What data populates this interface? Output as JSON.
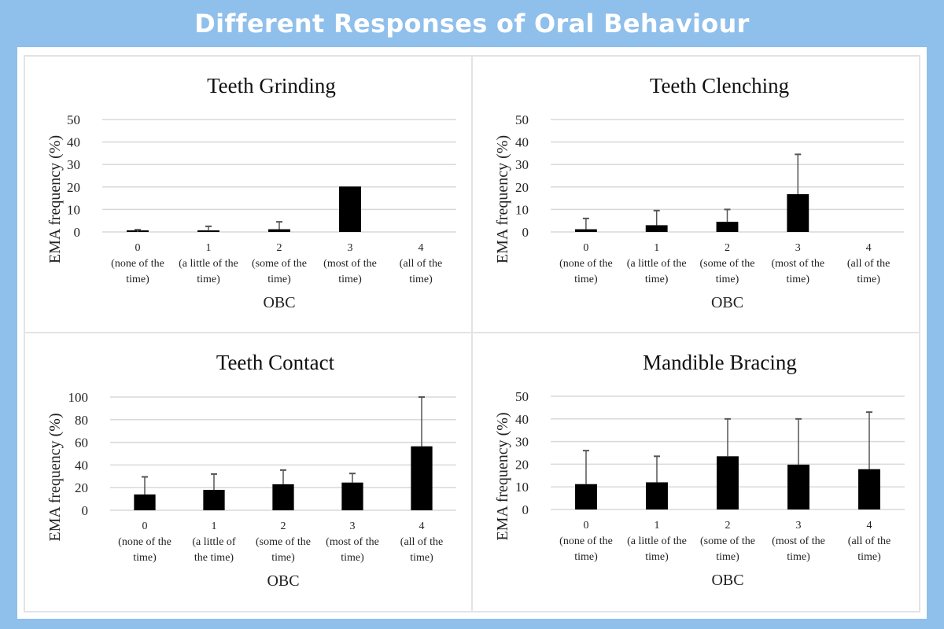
{
  "header": {
    "title": "Different Responses of Oral Behaviour"
  },
  "colors": {
    "background": "#8fbfeb",
    "bar": "#000000",
    "error_bar": "#555555",
    "grid": "#d9d9d9"
  },
  "chart_data": [
    {
      "type": "bar",
      "title": "Teeth Grinding",
      "xlabel": "OBC",
      "ylabel": "EMA frequency (%)",
      "ylim": [
        0,
        50
      ],
      "yticks": [
        "0",
        "10",
        "20",
        "30",
        "40",
        "50"
      ],
      "yticks_values": [
        0,
        10,
        20,
        30,
        40,
        50
      ],
      "grid": true,
      "categories": [
        [
          "0",
          "(none of the",
          "time)"
        ],
        [
          "1",
          "(a little of the",
          "time)"
        ],
        [
          "2",
          "(some of the",
          "time)"
        ],
        [
          "3",
          "(most of the",
          "time)"
        ],
        [
          "4",
          "(all of the",
          "time)"
        ]
      ],
      "values": [
        0,
        0.5,
        1.2,
        20.2,
        null
      ],
      "error_upper": [
        1,
        2.5,
        4.5,
        null,
        null
      ]
    },
    {
      "type": "bar",
      "title": "Teeth Clenching",
      "xlabel": "OBC",
      "ylabel": "EMA frequency (%)",
      "ylim": [
        0,
        50
      ],
      "yticks": [
        "0",
        "10",
        "20",
        "30",
        "40",
        "50"
      ],
      "yticks_values": [
        0,
        10,
        20,
        30,
        40,
        50
      ],
      "grid": true,
      "categories": [
        [
          "0",
          "(none of the",
          "time)"
        ],
        [
          "1",
          "(a little of the",
          "time)"
        ],
        [
          "2",
          "(some of the",
          "time)"
        ],
        [
          "3",
          "(most of the",
          "time)"
        ],
        [
          "4",
          "(all of the",
          "time)"
        ]
      ],
      "values": [
        1.2,
        3,
        4.5,
        16.8,
        null
      ],
      "error_upper": [
        6,
        9.5,
        10,
        34.5,
        null
      ]
    },
    {
      "type": "bar",
      "title": "Teeth Contact",
      "xlabel": "OBC",
      "ylabel": "EMA frequency (%)",
      "ylim": [
        0,
        100
      ],
      "yticks": [
        "0",
        "20",
        "40",
        "60",
        "80",
        "100"
      ],
      "yticks_values": [
        0,
        20,
        40,
        60,
        80,
        100
      ],
      "grid": true,
      "categories": [
        [
          "0",
          "(none of the",
          "time)"
        ],
        [
          "1",
          "(a little of",
          "the time)"
        ],
        [
          "2",
          "(some of the",
          "time)"
        ],
        [
          "3",
          "(most of the",
          "time)"
        ],
        [
          "4",
          "(all of the",
          "time)"
        ]
      ],
      "values": [
        14,
        18,
        23,
        24.5,
        56.5
      ],
      "error_upper": [
        29.5,
        32,
        35.5,
        32.5,
        100
      ]
    },
    {
      "type": "bar",
      "title": "Mandible Bracing",
      "xlabel": "OBC",
      "ylabel": "EMA frequency (%)",
      "ylim": [
        0,
        50
      ],
      "yticks": [
        "0",
        "10",
        "20",
        "30",
        "40",
        "50"
      ],
      "yticks_values": [
        0,
        10,
        20,
        30,
        40,
        50
      ],
      "grid": true,
      "categories": [
        [
          "0",
          "(none of the",
          "time)"
        ],
        [
          "1",
          "(a little of the",
          "time)"
        ],
        [
          "2",
          "(some of the",
          "time)"
        ],
        [
          "3",
          "(most of the",
          "time)"
        ],
        [
          "4",
          "(all of the",
          "time)"
        ]
      ],
      "values": [
        11.2,
        12,
        23.5,
        19.8,
        17.8
      ],
      "error_upper": [
        26,
        23.5,
        40,
        40,
        43
      ]
    }
  ]
}
